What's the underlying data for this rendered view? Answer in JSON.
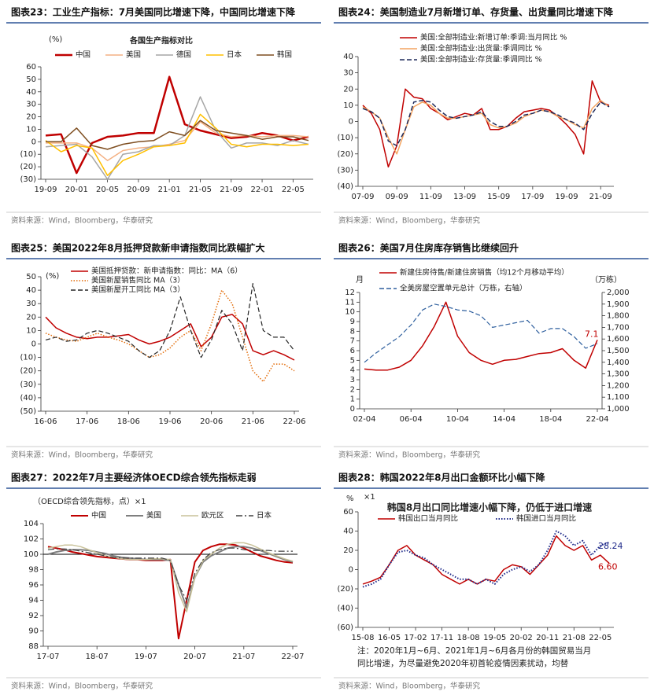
{
  "chart_data": [
    {
      "type": "line",
      "title": "图表23：工业生产指标：7月美国同比增速下降，中国同比增速下降",
      "subtitle": "各国生产指标对比",
      "y_unit": "(%)",
      "source": "资料来源：Wind，Bloomberg，华泰研究",
      "categories": [
        "19-09",
        null,
        "20-01",
        null,
        "20-05",
        null,
        "20-09",
        null,
        "21-01",
        null,
        "21-05",
        null,
        "21-09",
        null,
        "22-01",
        null,
        "22-05",
        null
      ],
      "series": [
        {
          "name": "中国",
          "color": "#c00000",
          "style": "solid",
          "width": 2.5,
          "values": [
            5,
            6,
            -25,
            -1,
            4,
            5,
            7,
            7,
            52,
            14,
            9,
            6,
            3,
            4,
            7,
            5,
            1,
            4
          ]
        },
        {
          "name": "美国",
          "color": "#f4b183",
          "style": "solid",
          "width": 1.5,
          "values": [
            -1,
            -1,
            -1,
            -5,
            -15,
            -7,
            -5,
            -4,
            -2,
            1,
            16,
            7,
            4,
            5,
            4,
            5,
            5,
            4
          ]
        },
        {
          "name": "德国",
          "color": "#a6a6a6",
          "style": "solid",
          "width": 1.5,
          "values": [
            -4,
            -3,
            -2,
            -12,
            -30,
            -10,
            -8,
            -3,
            -3,
            5,
            36,
            9,
            -5,
            -1,
            -1,
            -3,
            1,
            -2
          ]
        },
        {
          "name": "日本",
          "color": "#ffc000",
          "style": "solid",
          "width": 1.5,
          "values": [
            1,
            -8,
            -3,
            -5,
            -27,
            -15,
            -10,
            -4,
            -3,
            -1,
            22,
            11,
            -2,
            -4,
            -2,
            -2,
            -3,
            -2
          ]
        },
        {
          "name": "韩国",
          "color": "#7f4f21",
          "style": "solid",
          "width": 1.5,
          "values": [
            0,
            0,
            11,
            -3,
            -6,
            -2,
            0,
            1,
            8,
            5,
            17,
            9,
            7,
            5,
            2,
            4,
            4,
            1
          ]
        }
      ],
      "ylim": [
        -30,
        60
      ],
      "yticks": [
        {
          "value": -30,
          "label": "(30)"
        },
        {
          "value": -20,
          "label": "(20)"
        },
        {
          "value": -10,
          "label": "(10)"
        },
        0,
        10,
        20,
        30,
        40,
        50,
        60
      ],
      "legend": "top"
    },
    {
      "type": "line",
      "title": "图表24：美国制造业7月新增订单、存货量、出货量同比增速下降",
      "source": "资料来源：Wind，Bloomberg，华泰研究",
      "categories": [
        "07-09",
        null,
        null,
        null,
        "09-09",
        null,
        null,
        null,
        "11-09",
        null,
        null,
        null,
        "13-09",
        null,
        null,
        null,
        "15-09",
        null,
        null,
        null,
        "17-09",
        null,
        null,
        null,
        "19-09",
        null,
        null,
        null,
        "21-09",
        null
      ],
      "series": [
        {
          "name": "美国:全部制造业:新增订单:季调:当月同比 %",
          "color": "#c00000",
          "style": "solid",
          "width": 1.5,
          "values": [
            10,
            5,
            -5,
            -28,
            -15,
            20,
            15,
            14,
            8,
            5,
            1,
            3,
            5,
            4,
            8,
            -5,
            -5,
            -3,
            2,
            6,
            7,
            8,
            7,
            3,
            -2,
            -8,
            -20,
            25,
            12,
            10
          ]
        },
        {
          "name": "美国:全部制造业:出货量:季调同比 %",
          "color": "#f4a460",
          "style": "solid",
          "width": 1.5,
          "values": [
            9,
            6,
            2,
            -10,
            -20,
            -5,
            9,
            12,
            10,
            5,
            2,
            2,
            3,
            4,
            5,
            -2,
            -4,
            -3,
            -1,
            3,
            5,
            7,
            6,
            3,
            1,
            -2,
            -4,
            8,
            13,
            9
          ]
        },
        {
          "name": "美国:全部制造业:存货量:季调同比 %",
          "color": "#1f2a5a",
          "style": "dashed",
          "width": 1.5,
          "values": [
            8,
            6,
            2,
            -12,
            -15,
            -5,
            12,
            13,
            12,
            7,
            3,
            2,
            3,
            4,
            6,
            0,
            -3,
            -3,
            0,
            4,
            5,
            7,
            6,
            4,
            1,
            -1,
            -5,
            5,
            12,
            9
          ]
        }
      ],
      "ylim": [
        -40,
        40
      ],
      "yticks": [
        {
          "value": -40,
          "label": "(40)"
        },
        {
          "value": -30,
          "label": "(30)"
        },
        {
          "value": -20,
          "label": "(20)"
        },
        {
          "value": -10,
          "label": "(10)"
        },
        0,
        10,
        20,
        30,
        40
      ],
      "legend": "top-left"
    },
    {
      "type": "line",
      "title": "图表25：美国2022年8月抵押贷款新申请指数同比跌幅扩大",
      "y_unit": "(%)",
      "source": "资料来源：Wind，Bloomberg，华泰研究",
      "categories": [
        "16-06",
        null,
        null,
        null,
        "17-06",
        null,
        null,
        null,
        "18-06",
        null,
        null,
        null,
        "19-06",
        null,
        null,
        null,
        "20-06",
        null,
        null,
        null,
        "21-06",
        null,
        null,
        null,
        "22-06"
      ],
      "series": [
        {
          "name": "美国抵押贷款：新申请指数：同比：MA（6）",
          "color": "#c00000",
          "style": "solid",
          "width": 1.5,
          "values": [
            20,
            12,
            8,
            5,
            4,
            5,
            5,
            6,
            7,
            3,
            0,
            2,
            5,
            10,
            15,
            -2,
            5,
            20,
            22,
            15,
            -5,
            -8,
            -5,
            -8,
            -12
          ]
        },
        {
          "name": "美国新屋销售同比 MA（3）",
          "color": "#e36c09",
          "style": "dotted",
          "width": 1.5,
          "values": [
            8,
            5,
            3,
            2,
            5,
            8,
            5,
            3,
            0,
            -5,
            -10,
            -8,
            -3,
            5,
            10,
            -5,
            15,
            40,
            30,
            5,
            -20,
            -28,
            -15,
            -15,
            -20
          ]
        },
        {
          "name": "美国新屋开工同比 MA（3）",
          "color": "#262626",
          "style": "dashed",
          "width": 1.2,
          "values": [
            3,
            5,
            2,
            3,
            8,
            10,
            8,
            5,
            2,
            -5,
            -10,
            -5,
            10,
            35,
            10,
            -10,
            3,
            25,
            15,
            -5,
            45,
            10,
            5,
            5,
            -5
          ]
        }
      ],
      "ylim": [
        -50,
        50
      ],
      "yticks": [
        {
          "value": -50,
          "label": "(50)"
        },
        {
          "value": -40,
          "label": "(40)"
        },
        {
          "value": -30,
          "label": "(30)"
        },
        {
          "value": -20,
          "label": "(20)"
        },
        {
          "value": -10,
          "label": "(10)"
        },
        0,
        10,
        20,
        30,
        40,
        50
      ],
      "legend": "top-left"
    },
    {
      "type": "line",
      "title": "图表26：美国7月住房库存销售比继续回升",
      "y_unit": "月",
      "y2_unit": "（万栋）",
      "source": "资料来源：Wind，Bloomberg，华泰研究",
      "categories": [
        "02-04",
        null,
        null,
        null,
        "06-04",
        null,
        null,
        null,
        "10-04",
        null,
        null,
        null,
        "14-04",
        null,
        null,
        null,
        "18-04",
        null,
        null,
        null,
        "22-04"
      ],
      "series": [
        {
          "name": "新建住房待售/新建住房销售（均12个月移动平均）",
          "color": "#c00000",
          "style": "solid",
          "width": 1.5,
          "end_label": true,
          "values": [
            4.1,
            4.0,
            4.0,
            4.3,
            5.0,
            6.5,
            8.5,
            11.0,
            7.5,
            5.8,
            5.0,
            4.6,
            5.0,
            5.1,
            5.4,
            5.7,
            5.8,
            6.2,
            5.0,
            4.2,
            7.1
          ]
        },
        {
          "name": "全美房屋空置单元总计（万栋，右轴）",
          "color": "#2e5f9e",
          "style": "dashed",
          "width": 1.2,
          "axis": "y2",
          "values": [
            1400,
            1480,
            1550,
            1620,
            1720,
            1850,
            1900,
            1880,
            1850,
            1840,
            1800,
            1700,
            1720,
            1740,
            1760,
            1650,
            1690,
            1690,
            1620,
            1520,
            1560
          ]
        }
      ],
      "ylim": [
        0,
        12
      ],
      "yticks": [
        0,
        1,
        2,
        3,
        4,
        5,
        6,
        7,
        8,
        9,
        10,
        11,
        12
      ],
      "y2lim": [
        1000,
        2000
      ],
      "y2ticks": [
        {
          "value": 1000,
          "label": "1,000"
        },
        {
          "value": 1100,
          "label": "1,100"
        },
        {
          "value": 1200,
          "label": "1,200"
        },
        {
          "value": 1300,
          "label": "1,300"
        },
        {
          "value": 1400,
          "label": "1,400"
        },
        {
          "value": 1500,
          "label": "1,500"
        },
        {
          "value": 1600,
          "label": "1,600"
        },
        {
          "value": 1700,
          "label": "1,700"
        },
        {
          "value": 1800,
          "label": "1,800"
        },
        {
          "value": 1900,
          "label": "1,900"
        },
        {
          "value": 2000,
          "label": "2,000"
        }
      ],
      "legend": "top-left"
    },
    {
      "type": "line",
      "title": "图表27：2022年7月主要经济体OECD综合领先指标走弱",
      "y_unit": "（OECD综合领先指标，点）×1",
      "source": "资料来源：Wind，Bloomberg，华泰研究",
      "categories": [
        "17-07",
        null,
        null,
        null,
        null,
        null,
        "18-07",
        null,
        null,
        null,
        null,
        null,
        "19-07",
        null,
        null,
        null,
        null,
        null,
        "20-07",
        null,
        null,
        null,
        null,
        null,
        "21-07",
        null,
        null,
        null,
        null,
        null,
        "22-07"
      ],
      "series": [
        {
          "name": "中国",
          "color": "#c00000",
          "style": "solid",
          "width": 2,
          "values": [
            101,
            100.8,
            100.6,
            100.3,
            100.1,
            99.9,
            99.7,
            99.6,
            99.5,
            99.4,
            99.3,
            99.3,
            99.2,
            99.2,
            99.2,
            99.3,
            89,
            94,
            99,
            100.5,
            101,
            101.3,
            101.3,
            101.2,
            100.8,
            100.3,
            99.8,
            99.5,
            99.2,
            99.0,
            98.9
          ]
        },
        {
          "name": "美国",
          "color": "#7f7f7f",
          "style": "solid",
          "width": 2,
          "values": [
            100,
            100.3,
            100.5,
            100.6,
            100.6,
            100.5,
            100.3,
            100.1,
            99.8,
            99.6,
            99.5,
            99.4,
            99.3,
            99.3,
            99.3,
            99.2,
            96,
            93,
            97,
            99,
            99.8,
            100.3,
            100.8,
            101,
            101,
            100.8,
            100.5,
            100.1,
            99.7,
            99.3,
            99.0
          ]
        },
        {
          "name": "欧元区",
          "color": "#c9c29a",
          "style": "solid",
          "width": 1.5,
          "values": [
            100.8,
            101,
            101.2,
            101.2,
            101,
            100.6,
            100.2,
            99.8,
            99.6,
            99.4,
            99.3,
            99.3,
            99.3,
            99.4,
            99.4,
            99.3,
            95,
            92.5,
            97,
            99.2,
            100,
            100.8,
            101.3,
            101.5,
            101.5,
            101.2,
            100.7,
            100.2,
            99.8,
            99.4,
            99.1
          ]
        },
        {
          "name": "日本",
          "color": "#404040",
          "style": "dashdot",
          "width": 1.2,
          "values": [
            100.6,
            100.7,
            100.7,
            100.6,
            100.4,
            100.2,
            100,
            99.8,
            99.6,
            99.5,
            99.5,
            99.5,
            99.5,
            99.5,
            99.5,
            99.2,
            96,
            94,
            97.5,
            99.3,
            100.2,
            100.6,
            100.8,
            100.8,
            100.6,
            100.5,
            100.5,
            100.5,
            100.4,
            100.4,
            100.4
          ]
        }
      ],
      "ylim": [
        88,
        104
      ],
      "yticks": [
        88,
        90,
        92,
        94,
        96,
        98,
        100,
        102,
        104
      ],
      "ref_line": 100,
      "legend": "top"
    },
    {
      "type": "line",
      "title": "图表28：韩国2022年8月出口金额环比小幅下降",
      "subtitle": "韩国8月出口同比增速小幅下降，仍低于进口增速",
      "y_unit": "%",
      "y_multiplier": "×1",
      "source": "资料来源：Wind，Bloomberg，华泰研究",
      "note": [
        "注：2020年1月~6月、2021年1月~6月各月份的韩国贸易当月",
        "同比增速，为尽量避免2020年初首轮疫情因素扰动，均替"
      ],
      "categories": [
        "15-08",
        null,
        null,
        "16-05",
        null,
        null,
        "17-02",
        null,
        null,
        "17-11",
        null,
        null,
        "18-08",
        null,
        null,
        "19-05",
        null,
        null,
        "20-02",
        null,
        null,
        "20-11",
        null,
        null,
        "21-08",
        null,
        null,
        "22-05",
        null
      ],
      "series": [
        {
          "name": "韩国出口当月同比",
          "color": "#c00000",
          "style": "solid",
          "width": 1.5,
          "end_label": true,
          "values": [
            -15,
            -12,
            -8,
            5,
            20,
            25,
            15,
            10,
            5,
            -5,
            -10,
            -15,
            -10,
            -15,
            -10,
            -12,
            0,
            5,
            3,
            -5,
            5,
            15,
            35,
            25,
            20,
            25,
            10,
            15,
            6.6
          ],
          "value_labels": [
            null,
            null,
            null,
            null,
            null,
            null,
            null,
            null,
            null,
            null,
            null,
            null,
            null,
            null,
            null,
            null,
            null,
            null,
            null,
            null,
            null,
            null,
            null,
            null,
            null,
            null,
            null,
            null,
            "6.60"
          ]
        },
        {
          "name": "韩国进口当月同比",
          "color": "#1f2a8a",
          "style": "dotted",
          "width": 2,
          "end_label": true,
          "values": [
            -18,
            -15,
            -10,
            5,
            18,
            20,
            15,
            12,
            5,
            0,
            -5,
            -10,
            -10,
            -15,
            -10,
            -15,
            -5,
            0,
            3,
            -2,
            5,
            20,
            40,
            35,
            25,
            30,
            15,
            25,
            28.24
          ]
        }
      ],
      "ylim": [
        -60,
        60
      ],
      "yticks": [
        {
          "value": -60,
          "label": "(60)"
        },
        {
          "value": -40,
          "label": "(40)"
        },
        {
          "value": -20,
          "label": "(20)"
        },
        0,
        20,
        40,
        60
      ],
      "legend": "top"
    }
  ]
}
